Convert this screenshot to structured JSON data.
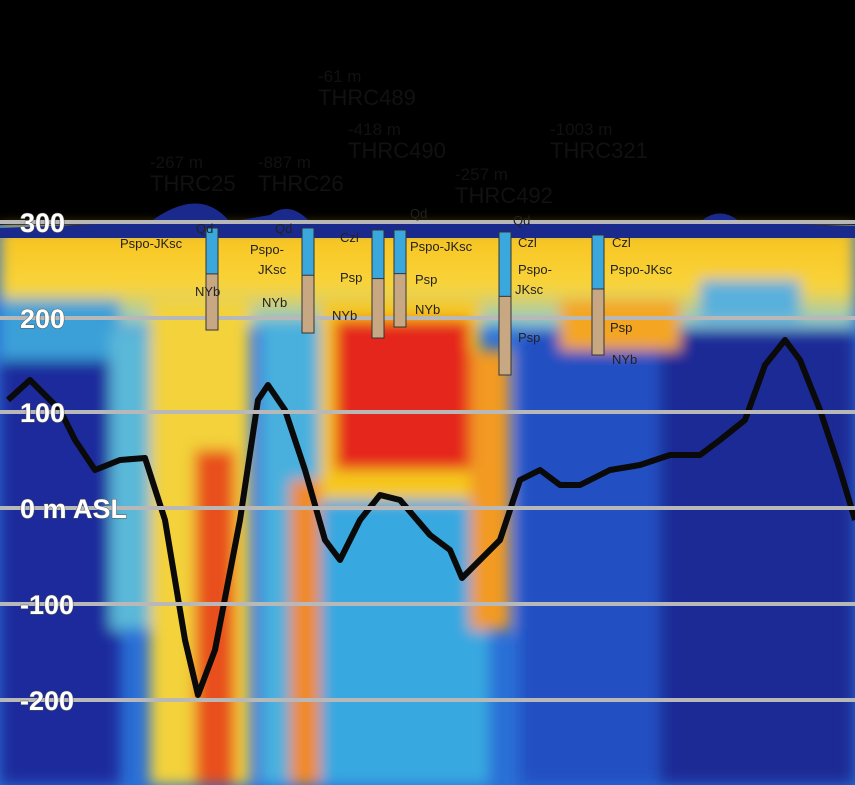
{
  "axis": {
    "labels": [
      "300",
      "200",
      "100",
      "0 m ASL",
      "-100",
      "-200"
    ]
  },
  "boreholes": [
    {
      "depth": "-267 m",
      "name": "THRC25"
    },
    {
      "depth": "-887 m",
      "name": "THRC26"
    },
    {
      "depth": "-61 m",
      "name": "THRC489"
    },
    {
      "depth": "-418 m",
      "name": "THRC490"
    },
    {
      "depth": "-257 m",
      "name": "THRC492"
    },
    {
      "depth": "-1003 m",
      "name": "THRC321"
    }
  ],
  "units": [
    "Qd",
    "Pspo-JKsc",
    "NYb",
    "Qd",
    "Pspo-",
    "JKsc",
    "NYb",
    "Czl",
    "Psp",
    "NYb",
    "Qd",
    "Pspo-JKsc",
    "Psp",
    "NYb",
    "Qd",
    "Czl",
    "Pspo-",
    "JKsc",
    "Psp",
    "Czl",
    "Pspo-JKsc",
    "Psp",
    "NYb"
  ]
}
